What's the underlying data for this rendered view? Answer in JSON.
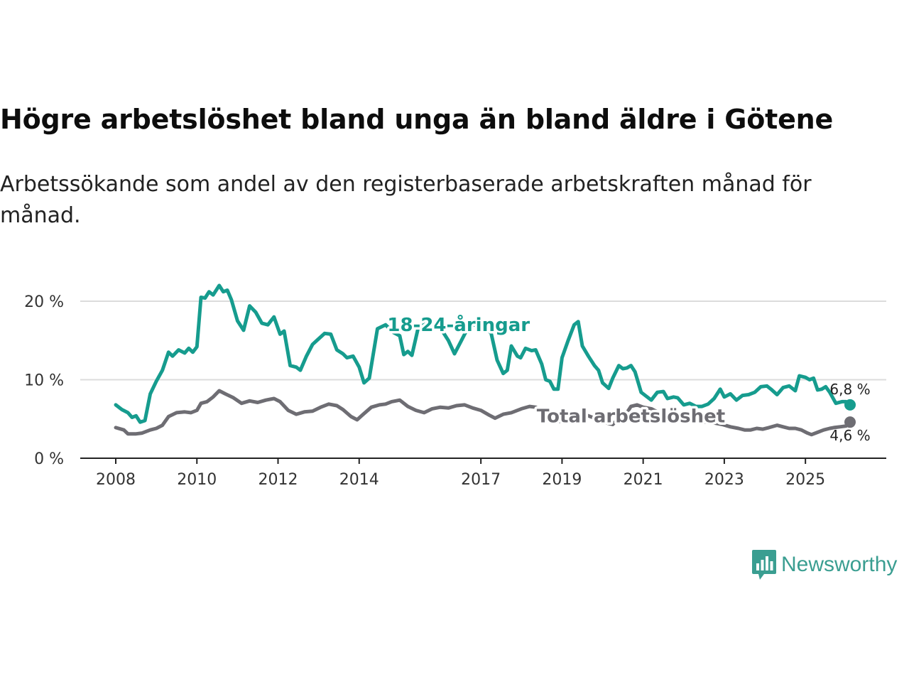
{
  "title": "Högre arbetslöshet bland unga än bland äldre i Götene",
  "subtitle": "Arbetssökande som andel av den registerbaserade arbetskraften månad för månad.",
  "brand": {
    "name": "Newsworthy",
    "color": "#3a9e91"
  },
  "chart_data": {
    "type": "line",
    "title": "Högre arbetslöshet bland unga än bland äldre i Götene",
    "subtitle": "Arbetssökande som andel av den registerbaserade arbetskraften månad för månad.",
    "xlabel": "",
    "ylabel": "",
    "xlim": [
      2008,
      2026.1
    ],
    "ylim": [
      0,
      22.5
    ],
    "grid": true,
    "x_ticks": [
      {
        "value": 2008,
        "label": "2008"
      },
      {
        "value": 2010,
        "label": "2010"
      },
      {
        "value": 2012,
        "label": "2012"
      },
      {
        "value": 2014,
        "label": "2014"
      },
      {
        "value": 2017,
        "label": "2017"
      },
      {
        "value": 2019,
        "label": "2019"
      },
      {
        "value": 2021,
        "label": "2021"
      },
      {
        "value": 2023,
        "label": "2023"
      },
      {
        "value": 2025,
        "label": "2025"
      }
    ],
    "y_ticks": [
      {
        "value": 0,
        "label": "0 %"
      },
      {
        "value": 10,
        "label": "10 %"
      },
      {
        "value": 20,
        "label": "20 %"
      }
    ],
    "series": [
      {
        "name": "18-24-åringar",
        "color": "#169c8e",
        "end_label": "6,8 %",
        "points": [
          [
            2008.0,
            6.8
          ],
          [
            2008.15,
            6.2
          ],
          [
            2008.3,
            5.8
          ],
          [
            2008.4,
            5.2
          ],
          [
            2008.5,
            5.4
          ],
          [
            2008.6,
            4.6
          ],
          [
            2008.72,
            4.8
          ],
          [
            2008.85,
            8.2
          ],
          [
            2009.0,
            9.8
          ],
          [
            2009.15,
            11.2
          ],
          [
            2009.3,
            13.5
          ],
          [
            2009.4,
            13.0
          ],
          [
            2009.55,
            13.8
          ],
          [
            2009.7,
            13.4
          ],
          [
            2009.8,
            14.0
          ],
          [
            2009.9,
            13.5
          ],
          [
            2010.0,
            14.2
          ],
          [
            2010.1,
            20.5
          ],
          [
            2010.2,
            20.4
          ],
          [
            2010.3,
            21.2
          ],
          [
            2010.4,
            20.8
          ],
          [
            2010.55,
            22.0
          ],
          [
            2010.65,
            21.2
          ],
          [
            2010.75,
            21.4
          ],
          [
            2010.85,
            20.2
          ],
          [
            2011.0,
            17.5
          ],
          [
            2011.15,
            16.3
          ],
          [
            2011.3,
            19.4
          ],
          [
            2011.45,
            18.6
          ],
          [
            2011.6,
            17.2
          ],
          [
            2011.75,
            17.0
          ],
          [
            2011.9,
            18.0
          ],
          [
            2012.05,
            15.8
          ],
          [
            2012.15,
            16.2
          ],
          [
            2012.3,
            11.8
          ],
          [
            2012.45,
            11.6
          ],
          [
            2012.55,
            11.2
          ],
          [
            2012.7,
            13.0
          ],
          [
            2012.85,
            14.5
          ],
          [
            2013.0,
            15.2
          ],
          [
            2013.15,
            15.9
          ],
          [
            2013.3,
            15.8
          ],
          [
            2013.45,
            13.8
          ],
          [
            2013.6,
            13.3
          ],
          [
            2013.7,
            12.8
          ],
          [
            2013.85,
            13.0
          ],
          [
            2014.0,
            11.6
          ],
          [
            2014.12,
            9.6
          ],
          [
            2014.25,
            10.2
          ],
          [
            2014.45,
            16.5
          ],
          [
            2014.65,
            17.0
          ],
          [
            2014.85,
            16.0
          ],
          [
            2015.0,
            15.6
          ],
          [
            2015.1,
            13.2
          ],
          [
            2015.2,
            13.6
          ],
          [
            2015.3,
            13.1
          ],
          [
            2015.45,
            16.5
          ],
          [
            2015.65,
            17.2
          ],
          [
            2015.85,
            16.8
          ],
          [
            2016.05,
            16.2
          ],
          [
            2016.2,
            15.0
          ],
          [
            2016.35,
            13.3
          ],
          [
            2016.5,
            14.8
          ],
          [
            2016.7,
            16.8
          ],
          [
            2016.85,
            17.0
          ],
          [
            2017.05,
            16.6
          ],
          [
            2017.25,
            16.0
          ],
          [
            2017.4,
            12.5
          ],
          [
            2017.55,
            10.8
          ],
          [
            2017.65,
            11.2
          ],
          [
            2017.75,
            14.3
          ],
          [
            2017.9,
            13.0
          ],
          [
            2017.98,
            12.8
          ],
          [
            2018.1,
            14.0
          ],
          [
            2018.25,
            13.7
          ],
          [
            2018.35,
            13.8
          ],
          [
            2018.5,
            12.0
          ],
          [
            2018.6,
            10.0
          ],
          [
            2018.7,
            9.8
          ],
          [
            2018.8,
            8.8
          ],
          [
            2018.9,
            8.8
          ],
          [
            2019.0,
            12.8
          ],
          [
            2019.15,
            15.0
          ],
          [
            2019.3,
            17.0
          ],
          [
            2019.4,
            17.4
          ],
          [
            2019.5,
            14.3
          ],
          [
            2019.65,
            13.0
          ],
          [
            2019.8,
            11.8
          ],
          [
            2019.9,
            11.2
          ],
          [
            2020.0,
            9.6
          ],
          [
            2020.15,
            8.9
          ],
          [
            2020.25,
            10.2
          ],
          [
            2020.4,
            11.8
          ],
          [
            2020.5,
            11.4
          ],
          [
            2020.6,
            11.5
          ],
          [
            2020.7,
            11.8
          ],
          [
            2020.8,
            11.0
          ],
          [
            2020.95,
            8.4
          ],
          [
            2021.1,
            7.8
          ],
          [
            2021.2,
            7.4
          ],
          [
            2021.35,
            8.4
          ],
          [
            2021.5,
            8.5
          ],
          [
            2021.6,
            7.6
          ],
          [
            2021.75,
            7.8
          ],
          [
            2021.85,
            7.7
          ],
          [
            2022.0,
            6.8
          ],
          [
            2022.15,
            7.0
          ],
          [
            2022.3,
            6.6
          ],
          [
            2022.45,
            6.6
          ],
          [
            2022.6,
            6.9
          ],
          [
            2022.75,
            7.6
          ],
          [
            2022.9,
            8.8
          ],
          [
            2023.0,
            7.8
          ],
          [
            2023.15,
            8.2
          ],
          [
            2023.3,
            7.4
          ],
          [
            2023.45,
            8.0
          ],
          [
            2023.6,
            8.1
          ],
          [
            2023.75,
            8.4
          ],
          [
            2023.9,
            9.1
          ],
          [
            2024.05,
            9.2
          ],
          [
            2024.15,
            8.8
          ],
          [
            2024.3,
            8.1
          ],
          [
            2024.45,
            9.0
          ],
          [
            2024.6,
            9.2
          ],
          [
            2024.75,
            8.6
          ],
          [
            2024.85,
            10.5
          ],
          [
            2025.0,
            10.3
          ],
          [
            2025.1,
            10.0
          ],
          [
            2025.2,
            10.2
          ],
          [
            2025.3,
            8.7
          ],
          [
            2025.4,
            8.8
          ],
          [
            2025.5,
            9.1
          ],
          [
            2025.6,
            8.4
          ],
          [
            2025.75,
            7.0
          ],
          [
            2025.9,
            7.2
          ],
          [
            2026.0,
            7.2
          ],
          [
            2026.1,
            6.8
          ]
        ]
      },
      {
        "name": "Total arbetslöshet",
        "color": "#6e6d73",
        "end_label": "4,6 %",
        "points": [
          [
            2008.0,
            3.9
          ],
          [
            2008.2,
            3.6
          ],
          [
            2008.3,
            3.1
          ],
          [
            2008.5,
            3.1
          ],
          [
            2008.65,
            3.2
          ],
          [
            2008.85,
            3.6
          ],
          [
            2009.0,
            3.8
          ],
          [
            2009.15,
            4.2
          ],
          [
            2009.3,
            5.3
          ],
          [
            2009.5,
            5.8
          ],
          [
            2009.7,
            5.9
          ],
          [
            2009.85,
            5.8
          ],
          [
            2010.0,
            6.1
          ],
          [
            2010.1,
            7.0
          ],
          [
            2010.25,
            7.2
          ],
          [
            2010.4,
            7.8
          ],
          [
            2010.55,
            8.6
          ],
          [
            2010.7,
            8.2
          ],
          [
            2010.9,
            7.7
          ],
          [
            2011.1,
            7.0
          ],
          [
            2011.3,
            7.3
          ],
          [
            2011.5,
            7.1
          ],
          [
            2011.7,
            7.4
          ],
          [
            2011.9,
            7.6
          ],
          [
            2012.05,
            7.2
          ],
          [
            2012.25,
            6.1
          ],
          [
            2012.45,
            5.6
          ],
          [
            2012.65,
            5.9
          ],
          [
            2012.85,
            6.0
          ],
          [
            2013.05,
            6.5
          ],
          [
            2013.25,
            6.9
          ],
          [
            2013.45,
            6.7
          ],
          [
            2013.6,
            6.2
          ],
          [
            2013.8,
            5.3
          ],
          [
            2013.95,
            4.9
          ],
          [
            2014.1,
            5.6
          ],
          [
            2014.3,
            6.5
          ],
          [
            2014.5,
            6.8
          ],
          [
            2014.65,
            6.9
          ],
          [
            2014.8,
            7.2
          ],
          [
            2015.0,
            7.4
          ],
          [
            2015.2,
            6.6
          ],
          [
            2015.4,
            6.1
          ],
          [
            2015.6,
            5.8
          ],
          [
            2015.8,
            6.3
          ],
          [
            2016.0,
            6.5
          ],
          [
            2016.2,
            6.4
          ],
          [
            2016.4,
            6.7
          ],
          [
            2016.6,
            6.8
          ],
          [
            2016.8,
            6.4
          ],
          [
            2017.0,
            6.1
          ],
          [
            2017.2,
            5.5
          ],
          [
            2017.35,
            5.1
          ],
          [
            2017.55,
            5.6
          ],
          [
            2017.75,
            5.8
          ],
          [
            2018.0,
            6.3
          ],
          [
            2018.2,
            6.6
          ],
          [
            2018.35,
            6.5
          ],
          [
            2018.5,
            6.0
          ],
          [
            2018.65,
            5.4
          ],
          [
            2018.8,
            4.9
          ],
          [
            2018.95,
            4.7
          ],
          [
            2019.1,
            5.4
          ],
          [
            2019.25,
            5.1
          ],
          [
            2019.45,
            5.5
          ],
          [
            2019.65,
            5.4
          ],
          [
            2019.8,
            5.1
          ],
          [
            2019.95,
            4.8
          ],
          [
            2020.1,
            4.5
          ],
          [
            2020.25,
            4.3
          ],
          [
            2020.4,
            5.1
          ],
          [
            2020.55,
            5.4
          ],
          [
            2020.7,
            6.6
          ],
          [
            2020.85,
            6.8
          ],
          [
            2021.0,
            6.5
          ],
          [
            2021.2,
            6.3
          ],
          [
            2021.35,
            5.9
          ],
          [
            2021.55,
            5.6
          ],
          [
            2021.7,
            5.4
          ],
          [
            2021.85,
            5.2
          ],
          [
            2022.0,
            5.0
          ],
          [
            2022.2,
            4.8
          ],
          [
            2022.35,
            4.8
          ],
          [
            2022.55,
            4.6
          ],
          [
            2022.75,
            4.5
          ],
          [
            2022.95,
            4.3
          ],
          [
            2023.15,
            4.0
          ],
          [
            2023.35,
            3.8
          ],
          [
            2023.5,
            3.6
          ],
          [
            2023.65,
            3.6
          ],
          [
            2023.8,
            3.8
          ],
          [
            2023.95,
            3.7
          ],
          [
            2024.1,
            3.9
          ],
          [
            2024.3,
            4.2
          ],
          [
            2024.45,
            4.0
          ],
          [
            2024.6,
            3.8
          ],
          [
            2024.75,
            3.8
          ],
          [
            2024.9,
            3.6
          ],
          [
            2025.05,
            3.2
          ],
          [
            2025.15,
            3.0
          ],
          [
            2025.3,
            3.3
          ],
          [
            2025.45,
            3.6
          ],
          [
            2025.6,
            3.8
          ],
          [
            2025.7,
            3.9
          ],
          [
            2025.85,
            4.0
          ],
          [
            2026.0,
            4.1
          ],
          [
            2026.1,
            4.6
          ]
        ]
      }
    ],
    "annotations": [
      {
        "text": "18-24-åringar",
        "series": "18-24-åringar",
        "x": 2016.45,
        "y": 17.0
      },
      {
        "text": "Total arbetslöshet",
        "series": "Total arbetslöshet",
        "x": 2020.7,
        "y": 5.4
      }
    ]
  }
}
